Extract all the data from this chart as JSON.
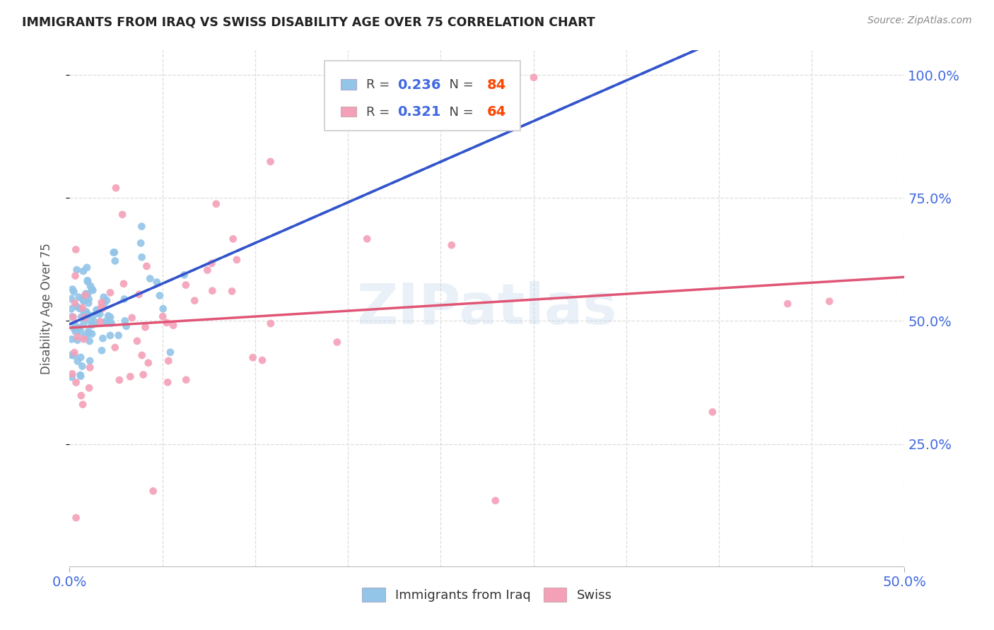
{
  "title": "IMMIGRANTS FROM IRAQ VS SWISS DISABILITY AGE OVER 75 CORRELATION CHART",
  "source": "Source: ZipAtlas.com",
  "ylabel": "Disability Age Over 75",
  "xlim": [
    0.0,
    0.5
  ],
  "ylim": [
    0.0,
    1.05
  ],
  "ytick_labels": [
    "25.0%",
    "50.0%",
    "75.0%",
    "100.0%"
  ],
  "ytick_values": [
    0.25,
    0.5,
    0.75,
    1.0
  ],
  "xtick_labels": [
    "0.0%",
    "50.0%"
  ],
  "xtick_values": [
    0.0,
    0.5
  ],
  "legend_r_blue": "0.236",
  "legend_n_blue": "84",
  "legend_r_pink": "0.321",
  "legend_n_pink": "64",
  "color_blue": "#92C5E8",
  "color_pink": "#F4A0B8",
  "line_color_blue": "#3355CC",
  "line_color_pink": "#E05575",
  "watermark": "ZIPatlas",
  "background_color": "#ffffff",
  "title_color": "#222222",
  "source_color": "#888888",
  "axis_label_color": "#555555",
  "tick_label_color": "#4169E1",
  "grid_color": "#dddddd",
  "legend_N_color": "#FF4500",
  "legend_text_color": "#444444"
}
